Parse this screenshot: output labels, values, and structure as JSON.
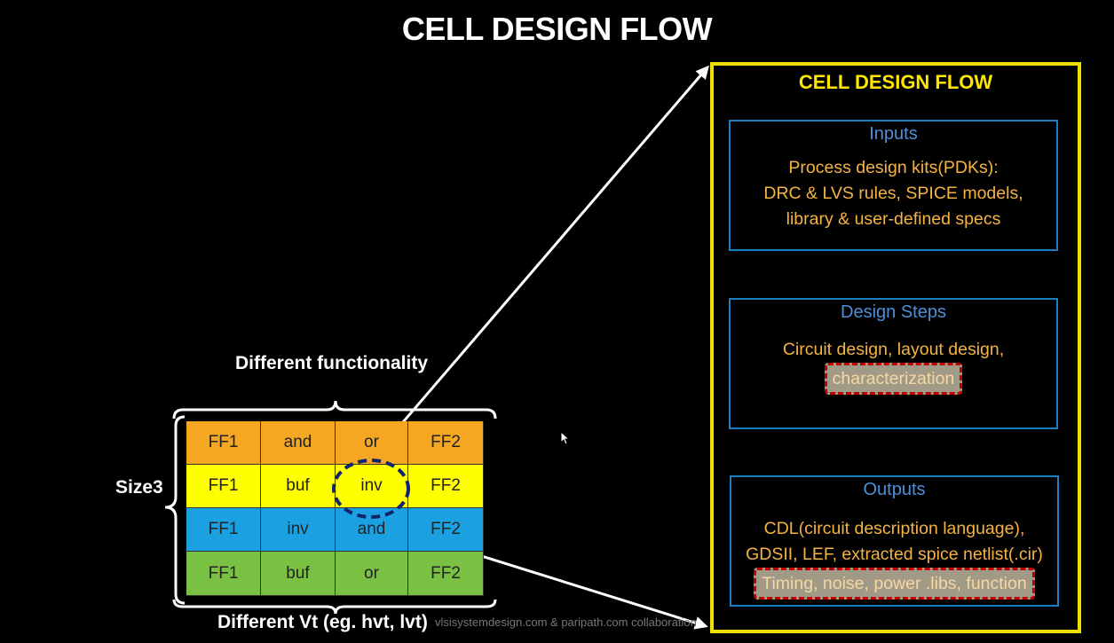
{
  "title": "CELL DESIGN FLOW",
  "left_diagram": {
    "top_label": "Different functionality",
    "left_label": "Size3",
    "bottom_label": "Different Vt (eg. hvt, lvt)",
    "rows": [
      [
        "FF1",
        "and",
        "or",
        "FF2"
      ],
      [
        "FF1",
        "buf",
        "inv",
        "FF2"
      ],
      [
        "FF1",
        "inv",
        "and",
        "FF2"
      ],
      [
        "FF1",
        "buf",
        "or",
        "FF2"
      ]
    ],
    "row_colors": [
      "#f5a623",
      "#ffff00",
      "#1ba1e2",
      "#7ac143"
    ]
  },
  "flow_box": {
    "title": "CELL DESIGN FLOW",
    "inputs": {
      "title": "Inputs",
      "lines": [
        "Process design kits(PDKs):",
        "DRC & LVS rules, SPICE models,",
        "library & user-defined specs"
      ]
    },
    "design_steps": {
      "title": "Design Steps",
      "line1": "Circuit design, layout design,",
      "highlight": "characterization"
    },
    "outputs": {
      "title": "Outputs",
      "line1": "CDL(circuit description language),",
      "line2": "GDSII, LEF, extracted spice netlist(.cir)",
      "highlight": "Timing, noise, power .libs, function"
    }
  },
  "watermark": "vlsisystemdesign.com & paripath.com collaboration"
}
